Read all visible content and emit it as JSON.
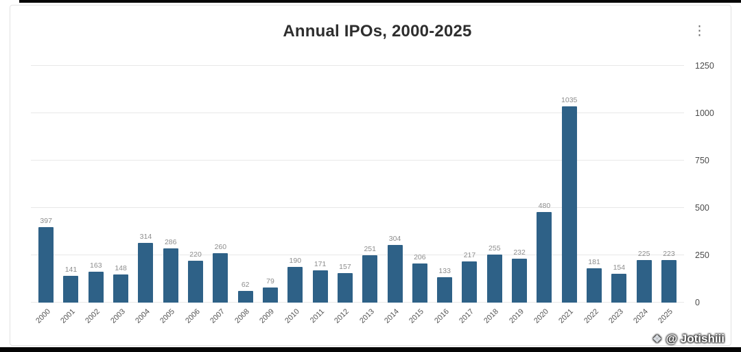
{
  "chart": {
    "title": "Annual IPOs, 2000-2025",
    "menu_icon": "⋮"
  },
  "watermark": {
    "icon": "❖",
    "text": "@ Jotishiii"
  },
  "chart_data": {
    "type": "bar",
    "title": "Annual IPOs, 2000-2025",
    "categories": [
      "2000",
      "2001",
      "2002",
      "2003",
      "2004",
      "2005",
      "2006",
      "2007",
      "2008",
      "2009",
      "2010",
      "2011",
      "2012",
      "2013",
      "2014",
      "2015",
      "2016",
      "2017",
      "2018",
      "2019",
      "2020",
      "2021",
      "2022",
      "2023",
      "2024",
      "2025"
    ],
    "values": [
      397,
      141,
      163,
      148,
      314,
      286,
      220,
      260,
      62,
      79,
      190,
      171,
      157,
      251,
      304,
      206,
      133,
      217,
      255,
      232,
      480,
      1035,
      181,
      154,
      225,
      223
    ],
    "y_ticks": [
      0,
      250,
      500,
      750,
      1000,
      1250
    ],
    "ylim": [
      0,
      1250
    ],
    "y_axis_position": "right",
    "grid": true,
    "data_labels": true,
    "bar_color": "#2e6187",
    "gridline_color": "#e8e8e8"
  }
}
